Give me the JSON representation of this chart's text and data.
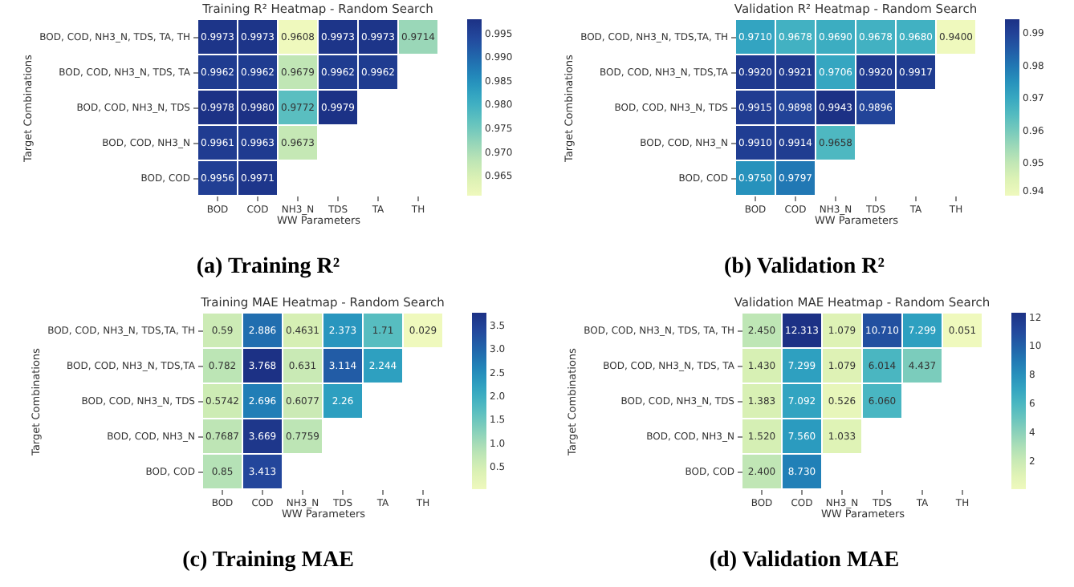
{
  "chart_data": [
    {
      "type": "heatmap",
      "title": "Training R² Heatmap - Random Search",
      "xlabel": "WW Parameters",
      "ylabel": "Target Combinations",
      "annotations": [
        "(a) Training R²"
      ],
      "categories": [
        "BOD",
        "COD",
        "NH3_N",
        "TDS",
        "TA",
        "TH"
      ],
      "y_categories": [
        "BOD, COD, NH3_N, TDS, TA, TH",
        "BOD, COD, NH3_N, TDS, TA",
        "BOD, COD, NH3_N, TDS",
        "BOD, COD, NH3_N",
        "BOD, COD"
      ],
      "cells": [
        [
          0.9973,
          0.9973,
          0.9608,
          0.9973,
          0.9973,
          0.9714
        ],
        [
          0.9962,
          0.9962,
          0.9679,
          0.9962,
          0.9962,
          null
        ],
        [
          0.9978,
          0.998,
          0.9772,
          0.9979,
          null,
          null
        ],
        [
          0.9961,
          0.9963,
          0.9673,
          null,
          null,
          null
        ],
        [
          0.9956,
          0.9971,
          null,
          null,
          null,
          null
        ]
      ],
      "cell_labels": [
        [
          "0.9973",
          "0.9973",
          "0.9608",
          "0.9973",
          "0.9973",
          "0.9714"
        ],
        [
          "0.9962",
          "0.9962",
          "0.9679",
          "0.9962",
          "0.9962",
          null
        ],
        [
          "0.9978",
          "0.9980",
          "0.9772",
          "0.9979",
          null,
          null
        ],
        [
          "0.9961",
          "0.9963",
          "0.9673",
          null,
          null,
          null
        ],
        [
          "0.9956",
          "0.9971",
          null,
          null,
          null,
          null
        ]
      ],
      "data_labels": true,
      "clim": [
        0.9608,
        0.998
      ],
      "cticks": [
        0.965,
        {
          "value": 0.97,
          "label": "0.970"
        },
        0.975,
        {
          "value": 0.98,
          "label": "0.980"
        },
        0.985,
        {
          "value": 0.99,
          "label": "0.990"
        },
        0.995
      ]
    },
    {
      "type": "heatmap",
      "title": "Validation R² Heatmap - Random Search",
      "xlabel": "WW Parameters",
      "ylabel": "Target Combinations",
      "annotations": [
        "(b) Validation R²"
      ],
      "categories": [
        "BOD",
        "COD",
        "NH3_N",
        "TDS",
        "TA",
        "TH"
      ],
      "y_categories": [
        "BOD, COD, NH3_N, TDS,TA, TH",
        "BOD, COD, NH3_N, TDS,TA",
        "BOD, COD, NH3_N, TDS",
        "BOD, COD, NH3_N",
        "BOD, COD"
      ],
      "cells": [
        [
          0.971,
          0.9678,
          0.969,
          0.9678,
          0.968,
          0.94
        ],
        [
          0.992,
          0.9921,
          0.9706,
          0.992,
          0.9917,
          null
        ],
        [
          0.9915,
          0.9898,
          0.9943,
          0.9896,
          null,
          null
        ],
        [
          0.991,
          0.9914,
          0.9658,
          null,
          null,
          null
        ],
        [
          0.975,
          0.9797,
          null,
          null,
          null,
          null
        ]
      ],
      "cell_labels": [
        [
          "0.9710",
          "0.9678",
          "0.9690",
          "0.9678",
          "0.9680",
          "0.9400"
        ],
        [
          "0.9920",
          "0.9921",
          "0.9706",
          "0.9920",
          "0.9917",
          null
        ],
        [
          "0.9915",
          "0.9898",
          "0.9943",
          "0.9896",
          null,
          null
        ],
        [
          "0.9910",
          "0.9914",
          "0.9658",
          null,
          null,
          null
        ],
        [
          "0.9750",
          "0.9797",
          null,
          null,
          null,
          null
        ]
      ],
      "data_labels": true,
      "clim": [
        0.94,
        0.9943
      ],
      "cticks": [
        0.94,
        0.95,
        0.96,
        0.97,
        0.98,
        0.99
      ]
    },
    {
      "type": "heatmap",
      "title": "Training MAE Heatmap - Random Search",
      "xlabel": "WW Parameters",
      "ylabel": "Target Combinations",
      "annotations": [
        "(c) Training MAE"
      ],
      "categories": [
        "BOD",
        "COD",
        "NH3_N",
        "TDS",
        "TA",
        "TH"
      ],
      "y_categories": [
        "BOD, COD, NH3_N, TDS,TA, TH",
        "BOD, COD, NH3_N, TDS,TA",
        "BOD, COD, NH3_N, TDS",
        "BOD, COD, NH3_N",
        "BOD, COD"
      ],
      "cells": [
        [
          0.59,
          2.886,
          0.4631,
          2.373,
          1.71,
          0.029
        ],
        [
          0.782,
          3.768,
          0.631,
          3.114,
          2.244,
          null
        ],
        [
          0.5742,
          2.696,
          0.6077,
          2.26,
          null,
          null
        ],
        [
          0.7687,
          3.669,
          0.7759,
          null,
          null,
          null
        ],
        [
          0.85,
          3.413,
          null,
          null,
          null,
          null
        ]
      ],
      "data_labels": true,
      "clim": [
        0.029,
        3.768
      ],
      "cticks": [
        0.5,
        {
          "value": 1,
          "label": "1.0"
        },
        1.5,
        {
          "value": 2,
          "label": "2.0"
        },
        2.5,
        {
          "value": 3,
          "label": "3.0"
        },
        3.5
      ]
    },
    {
      "type": "heatmap",
      "title": "Validation MAE Heatmap - Random Search",
      "xlabel": "WW Parameters",
      "ylabel": "Target Combinations",
      "annotations": [
        "(d) Validation MAE"
      ],
      "categories": [
        "BOD",
        "COD",
        "NH3_N",
        "TDS",
        "TA",
        "TH"
      ],
      "y_categories": [
        "BOD, COD, NH3_N, TDS, TA, TH",
        "BOD, COD, NH3_N, TDS, TA",
        "BOD, COD, NH3_N, TDS",
        "BOD, COD, NH3_N",
        "BOD, COD"
      ],
      "cells": [
        [
          2.45,
          12.313,
          1.079,
          10.71,
          7.299,
          0.051
        ],
        [
          1.43,
          7.299,
          1.079,
          6.014,
          4.437,
          null
        ],
        [
          1.383,
          7.092,
          0.526,
          6.06,
          null,
          null
        ],
        [
          1.52,
          7.56,
          1.033,
          null,
          null,
          null
        ],
        [
          2.4,
          8.73,
          null,
          null,
          null,
          null
        ]
      ],
      "cell_labels": [
        [
          "2.450",
          "12.313",
          "1.079",
          "10.710",
          "7.299",
          "0.051"
        ],
        [
          "1.430",
          "7.299",
          "1.079",
          "6.014",
          "4.437",
          null
        ],
        [
          "1.383",
          "7.092",
          "0.526",
          "6.060",
          null,
          null
        ],
        [
          "1.520",
          "7.560",
          "1.033",
          null,
          null,
          null
        ],
        [
          "2.400",
          "8.730",
          null,
          null,
          null,
          null
        ]
      ],
      "data_labels": true,
      "clim": [
        0.051,
        12.313
      ],
      "cticks": [
        2,
        4,
        6,
        8,
        10,
        12
      ]
    }
  ]
}
